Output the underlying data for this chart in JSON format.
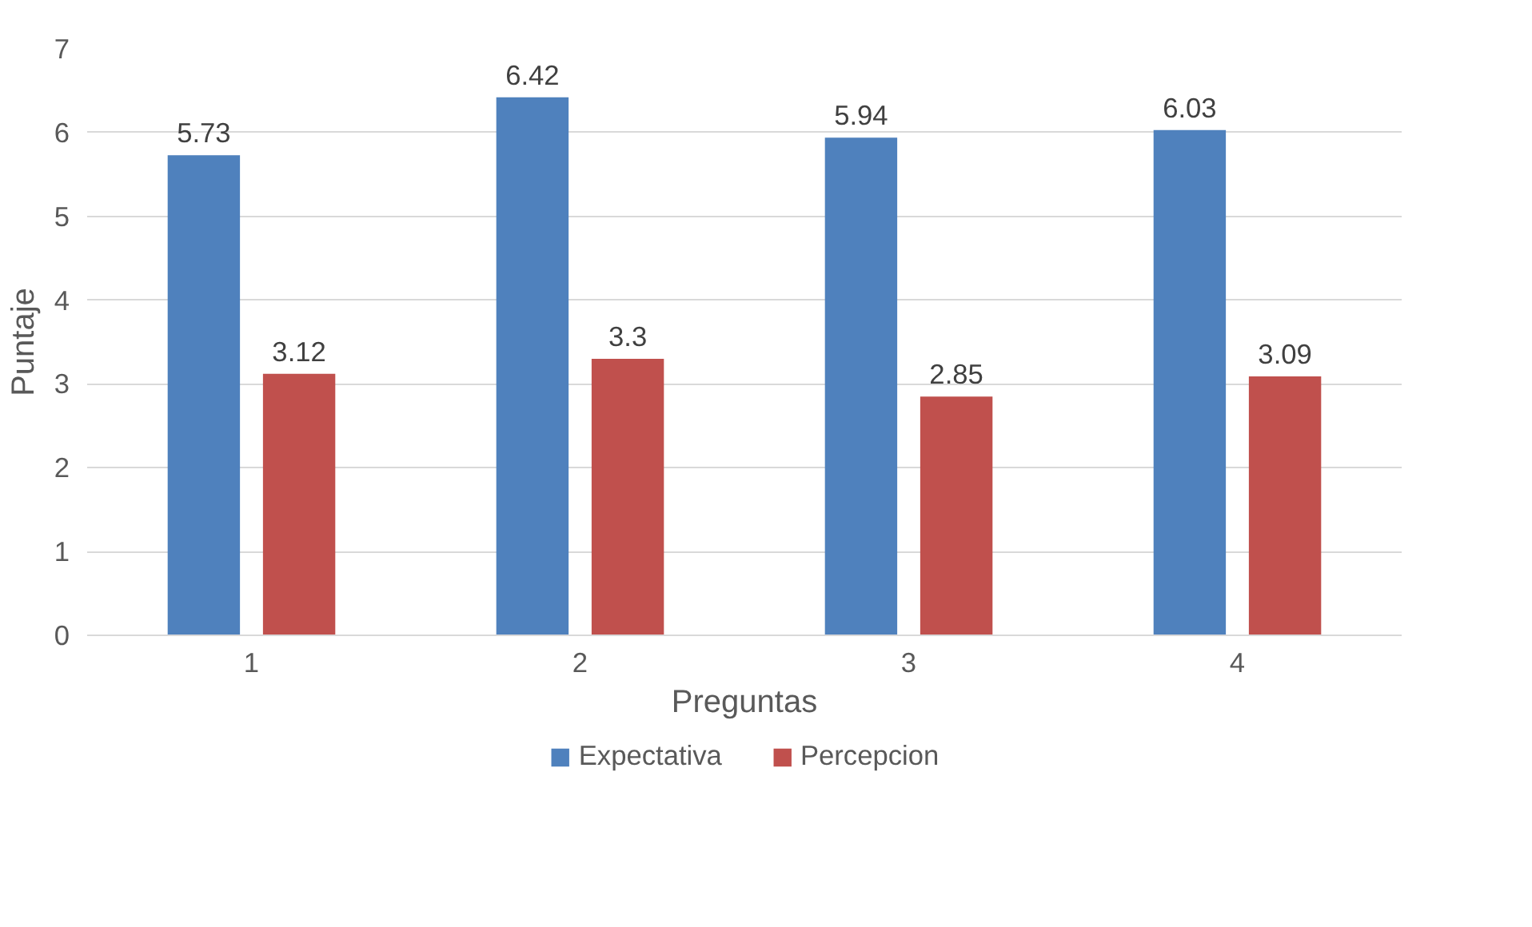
{
  "chart_data": {
    "type": "bar",
    "xlabel": "Preguntas",
    "ylabel": "Puntaje",
    "categories": [
      "1",
      "2",
      "3",
      "4"
    ],
    "series": [
      {
        "name": "Expectativa",
        "color": "#4f81bd",
        "values": [
          5.73,
          6.42,
          5.94,
          6.03
        ]
      },
      {
        "name": "Percepcion",
        "color": "#c0504d",
        "values": [
          3.12,
          3.3,
          2.85,
          3.09
        ]
      }
    ],
    "ylim": [
      0,
      7
    ],
    "yticks": [
      0,
      1,
      2,
      3,
      4,
      5,
      6,
      7
    ],
    "grid": "y",
    "legend": "bottom",
    "data_labels": true
  }
}
